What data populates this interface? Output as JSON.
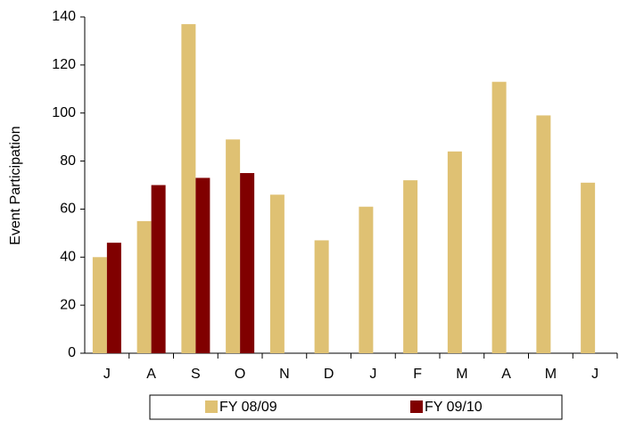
{
  "chart_data": {
    "type": "bar",
    "y_label": "Event Participation",
    "categories": [
      "J",
      "A",
      "S",
      "O",
      "N",
      "D",
      "J",
      "F",
      "M",
      "A",
      "M",
      "J"
    ],
    "series": [
      {
        "name": "FY 08/09",
        "color": "#dfc173",
        "values": [
          40,
          55,
          137,
          89,
          66,
          47,
          61,
          72,
          84,
          113,
          99,
          71
        ]
      },
      {
        "name": "FY 09/10",
        "color": "#800000",
        "values": [
          46,
          70,
          73,
          75,
          null,
          null,
          null,
          null,
          null,
          null,
          null,
          null
        ]
      }
    ],
    "ylim": [
      0,
      140
    ],
    "yticks": [
      0,
      20,
      40,
      60,
      80,
      100,
      120,
      140
    ],
    "legend": "bottom"
  }
}
